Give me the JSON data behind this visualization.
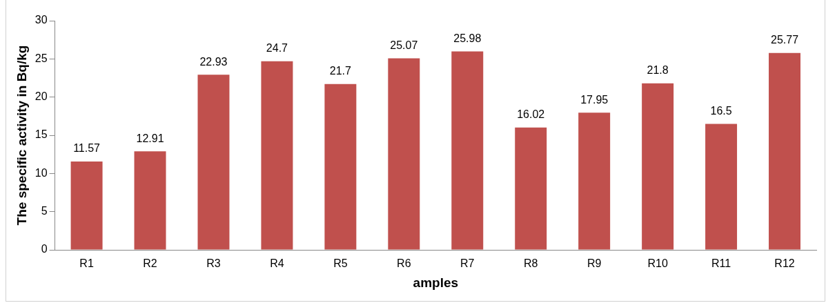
{
  "chart_data": {
    "type": "bar",
    "xlabel": "amples",
    "ylabel": "The specific activity in Bq/kg",
    "categories": [
      "R1",
      "R2",
      "R3",
      "R4",
      "R5",
      "R6",
      "R7",
      "R8",
      "R9",
      "R10",
      "R11",
      "R12"
    ],
    "values": [
      11.57,
      12.91,
      22.93,
      24.7,
      21.7,
      25.07,
      25.98,
      16.02,
      17.95,
      21.8,
      16.5,
      25.77
    ],
    "color": "#c0504d",
    "ylim": [
      0,
      30
    ],
    "yticks": [
      0,
      5,
      10,
      15,
      20,
      25,
      30
    ],
    "grid": false,
    "legend": false,
    "data_labels": true
  }
}
